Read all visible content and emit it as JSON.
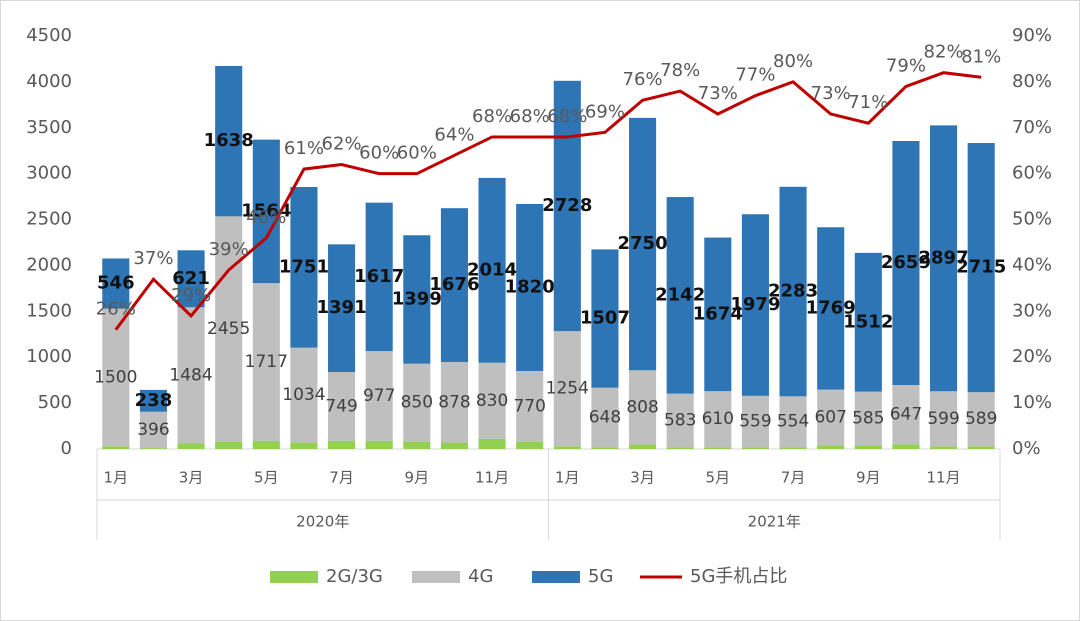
{
  "chart_data": {
    "type": "bar",
    "categories": [
      "1月",
      null,
      "3月",
      null,
      "5月",
      null,
      "7月",
      null,
      "9月",
      null,
      "11月",
      null,
      "1月",
      null,
      "3月",
      null,
      "5月",
      null,
      "7月",
      null,
      "9月",
      null,
      "11月",
      null
    ],
    "x_groups": [
      "2020年",
      "2021年"
    ],
    "series": [
      {
        "name": "2G/3G",
        "color": "#92d050",
        "values": [
          30,
          10,
          60,
          80,
          90,
          70,
          90,
          90,
          80,
          70,
          110,
          80,
          30,
          20,
          50,
          20,
          20,
          20,
          20,
          40,
          40,
          50,
          30,
          30
        ]
      },
      {
        "name": "4G",
        "color": "#bfbfbf",
        "values": [
          1500,
          396,
          1484,
          2455,
          1717,
          1034,
          749,
          977,
          850,
          878,
          830,
          770,
          1254,
          648,
          808,
          583,
          610,
          559,
          554,
          607,
          585,
          647,
          599,
          589
        ]
      },
      {
        "name": "5G",
        "color": "#2e75b6",
        "values": [
          546,
          238,
          621,
          1638,
          1564,
          1751,
          1391,
          1617,
          1399,
          1676,
          2014,
          1820,
          2728,
          1507,
          2750,
          2142,
          1674,
          1979,
          2283,
          1769,
          1512,
          2659,
          2897,
          2715
        ]
      },
      {
        "name": "5G手机占比",
        "color": "#c00000",
        "type": "line",
        "axis": "y2",
        "values": [
          26,
          37,
          29,
          39,
          46,
          61,
          62,
          60,
          60,
          64,
          68,
          68,
          68,
          69,
          76,
          78,
          73,
          77,
          80,
          73,
          71,
          79,
          82,
          81
        ],
        "value_labels": [
          "26%",
          "37%",
          "29%",
          "39%",
          "46%",
          "61%",
          "62%",
          "60%",
          "60%",
          "64%",
          "68%",
          "68%",
          "68%",
          "69%",
          "76%",
          "78%",
          "73%",
          "77%",
          "80%",
          "73%",
          "71%",
          "79%",
          "82%",
          "81%"
        ]
      }
    ],
    "stacked": true,
    "ylim": [
      0,
      4500
    ],
    "yticks": [
      0,
      500,
      1000,
      1500,
      2000,
      2500,
      3000,
      3500,
      4000,
      4500
    ],
    "y2lim": [
      0,
      90
    ],
    "y2ticks": [
      {
        "value": 0,
        "label": "0%"
      },
      {
        "value": 10,
        "label": "10%"
      },
      {
        "value": 20,
        "label": "20%"
      },
      {
        "value": 30,
        "label": "30%"
      },
      {
        "value": 40,
        "label": "40%"
      },
      {
        "value": 50,
        "label": "50%"
      },
      {
        "value": 60,
        "label": "60%"
      },
      {
        "value": 70,
        "label": "70%"
      },
      {
        "value": 80,
        "label": "80%"
      },
      {
        "value": 90,
        "label": "90%"
      }
    ],
    "legend": "bottom"
  }
}
